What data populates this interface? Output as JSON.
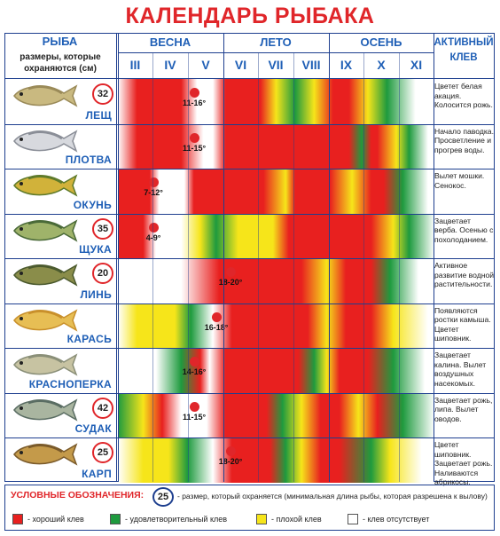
{
  "title": "КАЛЕНДАРЬ РЫБАКА",
  "header": {
    "fish_col": "РЫБА",
    "fish_sub": "размеры, которые охраняются (см)",
    "seasons": [
      "ВЕСНА",
      "ЛЕТО",
      "ОСЕНЬ"
    ],
    "months": [
      "III",
      "IV",
      "V",
      "VI",
      "VII",
      "VIII",
      "IX",
      "X",
      "XI"
    ],
    "active_col": "АКТИВНЫЙ КЛЕВ"
  },
  "colors": {
    "good": "#e8201f",
    "fair": "#1e9a3e",
    "poor": "#f6e51a",
    "none": "#ffffff",
    "accent": "#e0262a",
    "border": "#1e3f8f",
    "header_text": "#1f5fb6"
  },
  "fishes": [
    {
      "name": "ЛЕЩ",
      "size": "32",
      "spawn": "11-16°",
      "note": "Цветет белая акация. Колосится рожь."
    },
    {
      "name": "ПЛОТВА",
      "size": "",
      "spawn": "11-15°",
      "note": "Начало паводка. Просветление и прогрев воды."
    },
    {
      "name": "ОКУНЬ",
      "size": "",
      "spawn": "7-12°",
      "note": "Вылет мошки. Сенокос."
    },
    {
      "name": "ЩУКА",
      "size": "35",
      "spawn": "4-9°",
      "note": "Зацветает верба. Осенью с похолоданием."
    },
    {
      "name": "ЛИНЬ",
      "size": "20",
      "spawn": "18-20°",
      "note": "Активное развитие водной растительности."
    },
    {
      "name": "КАРАСЬ",
      "size": "",
      "spawn": "16-18°",
      "note": "Появляются ростки камыша. Цветет шиповник."
    },
    {
      "name": "КРАСНОПЕРКА",
      "size": "",
      "spawn": "14-16°",
      "note": "Зацветает калина. Вылет воздушных насекомых."
    },
    {
      "name": "СУДАК",
      "size": "42",
      "spawn": "11-15°",
      "note": "Зацветает рожь, липа. Вылет оводов."
    },
    {
      "name": "КАРП",
      "size": "25",
      "spawn": "18-20°",
      "note": "Цветет шиповник. Зацветает рожь. Наливаются абрикосы."
    }
  ],
  "legend": {
    "title": "УСЛОВНЫЕ ОБОЗНАЧЕНИЯ:",
    "badge": "25",
    "badge_desc": "- размер, который охраняется (минимальная длина рыбы, которая разрешена к вылову)",
    "items": [
      {
        "color": "#e8201f",
        "label": "- хороший клев"
      },
      {
        "color": "#1e9a3e",
        "label": "- удовлетворительный клев"
      },
      {
        "color": "#f6e51a",
        "label": "- плохой клев"
      },
      {
        "color": "#ffffff",
        "label": "- клев отсутствует"
      }
    ]
  }
}
